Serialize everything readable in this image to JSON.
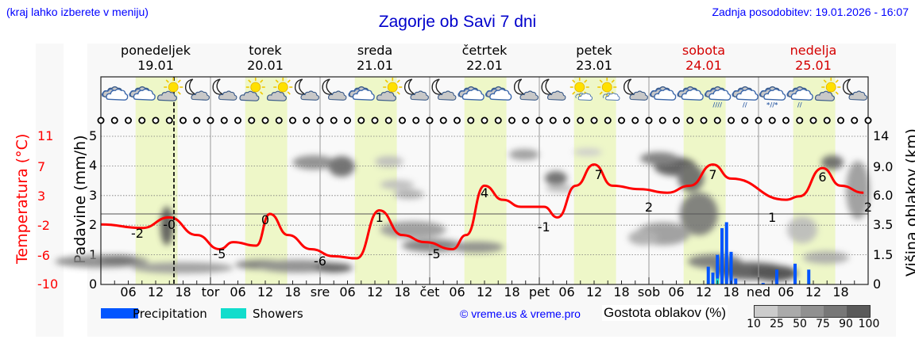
{
  "header": {
    "menu_hint": "(kraj lahko izberete v meniju)",
    "title": "Zagorje ob Savi 7 dni",
    "last_update": "Zadnja posodobitev: 19.01.2026 - 16:07"
  },
  "days": [
    {
      "name": "ponedeljek",
      "date": "19.01",
      "weekend": false,
      "short": ""
    },
    {
      "name": "torek",
      "date": "20.01",
      "weekend": false,
      "short": "tor"
    },
    {
      "name": "sreda",
      "date": "21.01",
      "weekend": false,
      "short": "sre"
    },
    {
      "name": "četrtek",
      "date": "22.01",
      "weekend": false,
      "short": "čet"
    },
    {
      "name": "petek",
      "date": "23.01",
      "weekend": false,
      "short": "pet"
    },
    {
      "name": "sobota",
      "date": "24.01",
      "weekend": true,
      "short": "sob"
    },
    {
      "name": "nedelja",
      "date": "25.01",
      "weekend": true,
      "short": "ned"
    }
  ],
  "hour_ticks": [
    "06",
    "12",
    "18"
  ],
  "axes": {
    "left_label": "Padavine (mm/h)",
    "left_ticks": [
      "0",
      "1",
      "2",
      "3",
      "4",
      "5"
    ],
    "temp_label": "Temperatura (°C)",
    "temp_ticks": [
      "11",
      "7",
      "3",
      "-2",
      "-6",
      "-10"
    ],
    "right_label": "Višina oblakov (km)",
    "right_ticks": [
      "14",
      "9.0",
      "6.0",
      "3.5",
      "1.5",
      "0"
    ]
  },
  "legend": {
    "precipitation": "Precipitation",
    "showers": "Showers",
    "precipitation_color": "#0055ff",
    "showers_color": "#11ddcc",
    "credit": "© vreme.us & vreme.pro",
    "cloud_density_label": "Gostota oblakov (%)",
    "cloud_scale": [
      "10",
      "25",
      "50",
      "75",
      "90",
      "100"
    ],
    "cloud_scale_colors": [
      "#cccccc",
      "#aaaaaa",
      "#909090",
      "#777777",
      "#5a5a5a"
    ]
  },
  "icons": [
    "cloudy",
    "cloudy",
    "sun-cloud",
    "moon-cloud",
    "moon-cloud",
    "sun-cloud",
    "sun-cloud",
    "moon-cloud",
    "moon-cloud",
    "cloudy",
    "sun-cloud",
    "moon-cloud",
    "moon-cloud",
    "cloudy",
    "cloudy",
    "moon-cloud",
    "moon-cloud",
    "sun-small-cloud",
    "sun-small-cloud",
    "moon-cloud",
    "cloudy",
    "cloudy",
    "rain-cloud",
    "light-rain-cloud",
    "sleet-cloud",
    "light-rain-cloud",
    "sun-cloud",
    "moon-cloud"
  ],
  "chart_data": {
    "type": "line",
    "title": "Zagorje ob Savi 7 dni",
    "xlabel": "",
    "ylabel": "Padavine (mm/h)",
    "ylim": [
      0,
      5
    ],
    "temperature_ylim": [
      -10,
      11
    ],
    "grid": true,
    "now_marker": "19.01 16:07",
    "series": [
      {
        "name": "Temperatura (°C)",
        "color": "#ff0000",
        "points": [
          {
            "t": "19.01 00",
            "v": -1.5
          },
          {
            "t": "19.01 09",
            "v": -2
          },
          {
            "t": "19.01 15",
            "v": -0.5
          },
          {
            "t": "19.01 21",
            "v": -3
          },
          {
            "t": "20.01 02",
            "v": -5
          },
          {
            "t": "20.01 05",
            "v": -4
          },
          {
            "t": "20.01 10",
            "v": -4.5
          },
          {
            "t": "20.01 13",
            "v": 0
          },
          {
            "t": "20.01 17",
            "v": -3
          },
          {
            "t": "20.01 22",
            "v": -5
          },
          {
            "t": "21.01 03",
            "v": -6
          },
          {
            "t": "21.01 08",
            "v": -6.3
          },
          {
            "t": "21.01 13",
            "v": 0.5
          },
          {
            "t": "21.01 18",
            "v": -3
          },
          {
            "t": "21.01 23",
            "v": -4
          },
          {
            "t": "22.01 05",
            "v": -5
          },
          {
            "t": "22.01 08",
            "v": -3
          },
          {
            "t": "22.01 12",
            "v": 4
          },
          {
            "t": "22.01 16",
            "v": 2
          },
          {
            "t": "22.01 20",
            "v": 1
          },
          {
            "t": "23.01 01",
            "v": 1
          },
          {
            "t": "23.01 04",
            "v": -0.5
          },
          {
            "t": "23.01 08",
            "v": 4
          },
          {
            "t": "23.01 12",
            "v": 7
          },
          {
            "t": "23.01 16",
            "v": 4
          },
          {
            "t": "23.01 22",
            "v": 3.5
          },
          {
            "t": "24.01 04",
            "v": 3
          },
          {
            "t": "24.01 09",
            "v": 4
          },
          {
            "t": "24.01 14",
            "v": 7
          },
          {
            "t": "24.01 18",
            "v": 5
          },
          {
            "t": "25.01 06",
            "v": 2
          },
          {
            "t": "25.01 09",
            "v": 2.5
          },
          {
            "t": "25.01 14",
            "v": 6.5
          },
          {
            "t": "25.01 18",
            "v": 4
          },
          {
            "t": "25.01 23",
            "v": 3
          }
        ]
      },
      {
        "name": "Precipitation (mm/h)",
        "color": "#0055ff",
        "points": [
          {
            "t": "24.01 13",
            "v": 0.6
          },
          {
            "t": "24.01 14",
            "v": 0.4
          },
          {
            "t": "24.01 15",
            "v": 1.0
          },
          {
            "t": "24.01 16",
            "v": 1.9
          },
          {
            "t": "24.01 17",
            "v": 2.1
          },
          {
            "t": "24.01 18",
            "v": 1.1
          },
          {
            "t": "24.01 19",
            "v": 0.2
          },
          {
            "t": "25.01 01",
            "v": 0.05
          },
          {
            "t": "25.01 04",
            "v": 0.5
          },
          {
            "t": "25.01 08",
            "v": 0.7
          },
          {
            "t": "25.01 11",
            "v": 0.5
          }
        ]
      },
      {
        "name": "Showers (mm/h)",
        "color": "#11ddcc",
        "points": [
          {
            "t": "24.01 15",
            "v": 0.2
          }
        ]
      }
    ],
    "temperature_labels": [
      {
        "t": "19.01 08",
        "v": "-2"
      },
      {
        "t": "19.01 15",
        "v": "-0"
      },
      {
        "t": "20.01 02",
        "v": "-5"
      },
      {
        "t": "20.01 12",
        "v": "0"
      },
      {
        "t": "21.01 00",
        "v": "-6"
      },
      {
        "t": "21.01 13",
        "v": "1"
      },
      {
        "t": "22.01 01",
        "v": "-5"
      },
      {
        "t": "22.01 12",
        "v": "4"
      },
      {
        "t": "23.01 01",
        "v": "-1"
      },
      {
        "t": "23.01 13",
        "v": "7"
      },
      {
        "t": "24.01 00",
        "v": "2"
      },
      {
        "t": "24.01 14",
        "v": "7"
      },
      {
        "t": "25.01 03",
        "v": "1"
      },
      {
        "t": "25.01 14",
        "v": "6"
      },
      {
        "t": "25.01 24",
        "v": "2"
      }
    ]
  }
}
